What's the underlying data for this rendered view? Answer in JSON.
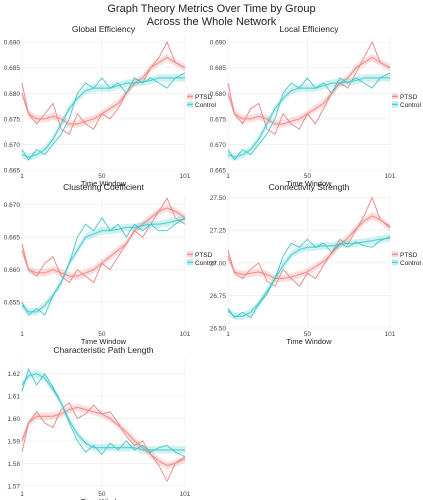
{
  "title_lines": [
    "Graph Theory Metrics Over Time by Group",
    "Across the Whole Network"
  ],
  "colors": {
    "PTSD": "#f08080",
    "Control": "#3cc8c8",
    "panel_bg": "#ffffff",
    "grid": "#ebebeb"
  },
  "chart_data": [
    {
      "type": "line",
      "title": "Global Efficiency",
      "xlabel": "Time Window",
      "ylabel": "",
      "xlim": [
        1,
        101
      ],
      "ylim": [
        0.665,
        0.691
      ],
      "x_ticks": [
        1,
        50,
        101
      ],
      "y_ticks": [
        "0.665",
        "0.670",
        "0.675",
        "0.680",
        "0.685",
        "0.690"
      ],
      "legend": {
        "position": "right",
        "entries": [
          "PTSD",
          "Control"
        ]
      },
      "series": [
        {
          "name": "PTSD",
          "x": [
            1,
            5,
            10,
            15,
            20,
            25,
            30,
            35,
            40,
            45,
            50,
            55,
            60,
            65,
            70,
            75,
            80,
            85,
            90,
            95,
            101
          ],
          "raw": [
            0.682,
            0.676,
            0.674,
            0.676,
            0.678,
            0.673,
            0.672,
            0.676,
            0.674,
            0.673,
            0.676,
            0.675,
            0.677,
            0.68,
            0.683,
            0.682,
            0.685,
            0.687,
            0.69,
            0.686,
            0.685
          ],
          "smooth": [
            0.68,
            0.676,
            0.675,
            0.675,
            0.6755,
            0.675,
            0.674,
            0.674,
            0.6745,
            0.675,
            0.676,
            0.677,
            0.678,
            0.68,
            0.682,
            0.683,
            0.685,
            0.686,
            0.687,
            0.686,
            0.685
          ]
        },
        {
          "name": "Control",
          "x": [
            1,
            5,
            10,
            15,
            20,
            25,
            30,
            35,
            40,
            45,
            50,
            55,
            60,
            65,
            70,
            75,
            80,
            85,
            90,
            95,
            101
          ],
          "raw": [
            0.669,
            0.667,
            0.669,
            0.668,
            0.67,
            0.672,
            0.675,
            0.68,
            0.682,
            0.681,
            0.683,
            0.681,
            0.682,
            0.68,
            0.683,
            0.682,
            0.683,
            0.682,
            0.681,
            0.683,
            0.684
          ],
          "smooth": [
            0.668,
            0.6675,
            0.668,
            0.669,
            0.671,
            0.674,
            0.677,
            0.679,
            0.6805,
            0.681,
            0.681,
            0.681,
            0.6815,
            0.682,
            0.682,
            0.6822,
            0.6825,
            0.683,
            0.683,
            0.683,
            0.683
          ]
        }
      ]
    },
    {
      "type": "line",
      "title": "Local Efficiency",
      "xlabel": "Time Window",
      "ylabel": "",
      "xlim": [
        1,
        101
      ],
      "ylim": [
        0.665,
        0.691
      ],
      "x_ticks": [
        1,
        50,
        101
      ],
      "y_ticks": [
        "0.665",
        "0.670",
        "0.675",
        "0.680",
        "0.685",
        "0.690"
      ],
      "legend": {
        "position": "right",
        "entries": [
          "PTSD",
          "Control"
        ]
      },
      "series": [
        {
          "name": "PTSD",
          "x": [
            1,
            5,
            10,
            15,
            20,
            25,
            30,
            35,
            40,
            45,
            50,
            55,
            60,
            65,
            70,
            75,
            80,
            85,
            90,
            95,
            101
          ],
          "raw": [
            0.682,
            0.676,
            0.674,
            0.677,
            0.678,
            0.673,
            0.672,
            0.676,
            0.674,
            0.673,
            0.676,
            0.674,
            0.677,
            0.68,
            0.682,
            0.681,
            0.684,
            0.687,
            0.69,
            0.686,
            0.685
          ],
          "smooth": [
            0.68,
            0.676,
            0.675,
            0.675,
            0.6755,
            0.675,
            0.674,
            0.674,
            0.6745,
            0.675,
            0.676,
            0.677,
            0.678,
            0.68,
            0.682,
            0.683,
            0.685,
            0.686,
            0.687,
            0.686,
            0.685
          ]
        },
        {
          "name": "Control",
          "x": [
            1,
            5,
            10,
            15,
            20,
            25,
            30,
            35,
            40,
            45,
            50,
            55,
            60,
            65,
            70,
            75,
            80,
            85,
            90,
            95,
            101
          ],
          "raw": [
            0.669,
            0.667,
            0.669,
            0.668,
            0.67,
            0.672,
            0.675,
            0.68,
            0.682,
            0.681,
            0.683,
            0.681,
            0.682,
            0.68,
            0.683,
            0.682,
            0.683,
            0.682,
            0.681,
            0.683,
            0.684
          ],
          "smooth": [
            0.668,
            0.6675,
            0.668,
            0.669,
            0.671,
            0.674,
            0.677,
            0.679,
            0.6805,
            0.681,
            0.681,
            0.681,
            0.6815,
            0.682,
            0.682,
            0.6822,
            0.6825,
            0.683,
            0.683,
            0.683,
            0.683
          ]
        }
      ]
    },
    {
      "type": "line",
      "title": "Clustering Coefficient",
      "xlabel": "Time Window",
      "ylabel": "",
      "xlim": [
        1,
        101
      ],
      "ylim": [
        0.651,
        0.6715
      ],
      "x_ticks": [
        1,
        50,
        101
      ],
      "y_ticks": [
        "0.655",
        "0.660",
        "0.665",
        "0.670"
      ],
      "legend": {
        "position": "right",
        "entries": [
          "PTSD",
          "Control"
        ]
      },
      "series": [
        {
          "name": "PTSD",
          "x": [
            1,
            5,
            10,
            15,
            20,
            25,
            30,
            35,
            40,
            45,
            50,
            55,
            60,
            65,
            70,
            75,
            80,
            85,
            90,
            95,
            101
          ],
          "raw": [
            0.664,
            0.66,
            0.659,
            0.661,
            0.662,
            0.659,
            0.658,
            0.66,
            0.659,
            0.658,
            0.661,
            0.66,
            0.662,
            0.664,
            0.666,
            0.665,
            0.667,
            0.669,
            0.671,
            0.668,
            0.667
          ],
          "smooth": [
            0.663,
            0.66,
            0.6595,
            0.6595,
            0.66,
            0.6595,
            0.659,
            0.659,
            0.6595,
            0.66,
            0.661,
            0.662,
            0.663,
            0.664,
            0.666,
            0.667,
            0.668,
            0.669,
            0.6695,
            0.669,
            0.668
          ]
        },
        {
          "name": "Control",
          "x": [
            1,
            5,
            10,
            15,
            20,
            25,
            30,
            35,
            40,
            45,
            50,
            55,
            60,
            65,
            70,
            75,
            80,
            85,
            90,
            95,
            101
          ],
          "raw": [
            0.655,
            0.653,
            0.654,
            0.653,
            0.656,
            0.658,
            0.661,
            0.665,
            0.667,
            0.666,
            0.668,
            0.666,
            0.667,
            0.665,
            0.667,
            0.666,
            0.667,
            0.666,
            0.666,
            0.667,
            0.668
          ],
          "smooth": [
            0.6545,
            0.6535,
            0.6535,
            0.6545,
            0.656,
            0.658,
            0.661,
            0.663,
            0.665,
            0.6655,
            0.666,
            0.666,
            0.6662,
            0.6665,
            0.6665,
            0.6668,
            0.667,
            0.667,
            0.6672,
            0.6675,
            0.6678
          ]
        }
      ]
    },
    {
      "type": "line",
      "title": "Connectivity Strength",
      "xlabel": "Time Window",
      "ylabel": "",
      "xlim": [
        1,
        101
      ],
      "ylim": [
        26.5,
        27.52
      ],
      "x_ticks": [
        1,
        50,
        101
      ],
      "y_ticks": [
        "26.50",
        "26.75",
        "27.00",
        "27.25",
        "27.50"
      ],
      "legend": {
        "position": "right",
        "entries": [
          "PTSD",
          "Control"
        ]
      },
      "series": [
        {
          "name": "PTSD",
          "x": [
            1,
            5,
            10,
            15,
            20,
            25,
            30,
            35,
            40,
            45,
            50,
            55,
            60,
            65,
            70,
            75,
            80,
            85,
            90,
            95,
            101
          ],
          "raw": [
            27.1,
            26.92,
            26.88,
            26.95,
            27.0,
            26.86,
            26.82,
            26.95,
            26.88,
            26.82,
            26.92,
            26.88,
            26.98,
            27.08,
            27.18,
            27.14,
            27.25,
            27.36,
            27.5,
            27.33,
            27.28
          ],
          "smooth": [
            27.05,
            26.93,
            26.91,
            26.92,
            26.93,
            26.91,
            26.88,
            26.88,
            26.89,
            26.91,
            26.93,
            26.97,
            27.01,
            27.07,
            27.14,
            27.19,
            27.26,
            27.32,
            27.36,
            27.33,
            27.27
          ]
        },
        {
          "name": "Control",
          "x": [
            1,
            5,
            10,
            15,
            20,
            25,
            30,
            35,
            40,
            45,
            50,
            55,
            60,
            65,
            70,
            75,
            80,
            85,
            90,
            95,
            101
          ],
          "raw": [
            26.65,
            26.58,
            26.62,
            26.58,
            26.68,
            26.76,
            26.88,
            27.05,
            27.15,
            27.12,
            27.18,
            27.12,
            27.15,
            27.08,
            27.15,
            27.12,
            27.16,
            27.13,
            27.12,
            27.17,
            27.2
          ],
          "smooth": [
            26.63,
            26.59,
            26.59,
            26.62,
            26.69,
            26.78,
            26.88,
            26.98,
            27.06,
            27.1,
            27.12,
            27.12,
            27.13,
            27.13,
            27.14,
            27.15,
            27.15,
            27.16,
            27.17,
            27.18,
            27.19
          ]
        }
      ]
    },
    {
      "type": "line",
      "title": "Characteristic Path Length",
      "xlabel": "Time Window",
      "ylabel": "",
      "xlim": [
        1,
        101
      ],
      "ylim": [
        1.569,
        1.627
      ],
      "x_ticks": [
        1,
        50,
        101
      ],
      "y_ticks": [
        "1.57",
        "1.58",
        "1.59",
        "1.60",
        "1.61",
        "1.62"
      ],
      "legend": null,
      "series": [
        {
          "name": "PTSD",
          "x": [
            1,
            5,
            10,
            15,
            20,
            25,
            30,
            35,
            40,
            45,
            50,
            55,
            60,
            65,
            70,
            75,
            80,
            85,
            90,
            95,
            101
          ],
          "raw": [
            1.585,
            1.598,
            1.603,
            1.598,
            1.596,
            1.604,
            1.607,
            1.6,
            1.602,
            1.606,
            1.602,
            1.603,
            1.598,
            1.592,
            1.588,
            1.59,
            1.584,
            1.579,
            1.572,
            1.58,
            1.583
          ],
          "smooth": [
            1.59,
            1.598,
            1.601,
            1.601,
            1.601,
            1.602,
            1.604,
            1.605,
            1.604,
            1.603,
            1.602,
            1.6,
            1.597,
            1.594,
            1.59,
            1.587,
            1.584,
            1.581,
            1.579,
            1.58,
            1.582
          ]
        },
        {
          "name": "Control",
          "x": [
            1,
            5,
            10,
            15,
            20,
            25,
            30,
            35,
            40,
            45,
            50,
            55,
            60,
            65,
            70,
            75,
            80,
            85,
            90,
            95,
            101
          ],
          "raw": [
            1.612,
            1.622,
            1.615,
            1.62,
            1.614,
            1.607,
            1.598,
            1.59,
            1.585,
            1.588,
            1.584,
            1.589,
            1.586,
            1.59,
            1.586,
            1.588,
            1.585,
            1.587,
            1.588,
            1.585,
            1.583
          ],
          "smooth": [
            1.615,
            1.619,
            1.62,
            1.618,
            1.613,
            1.607,
            1.599,
            1.593,
            1.589,
            1.587,
            1.587,
            1.587,
            1.587,
            1.587,
            1.587,
            1.586,
            1.586,
            1.586,
            1.586,
            1.586,
            1.586
          ]
        }
      ]
    }
  ]
}
